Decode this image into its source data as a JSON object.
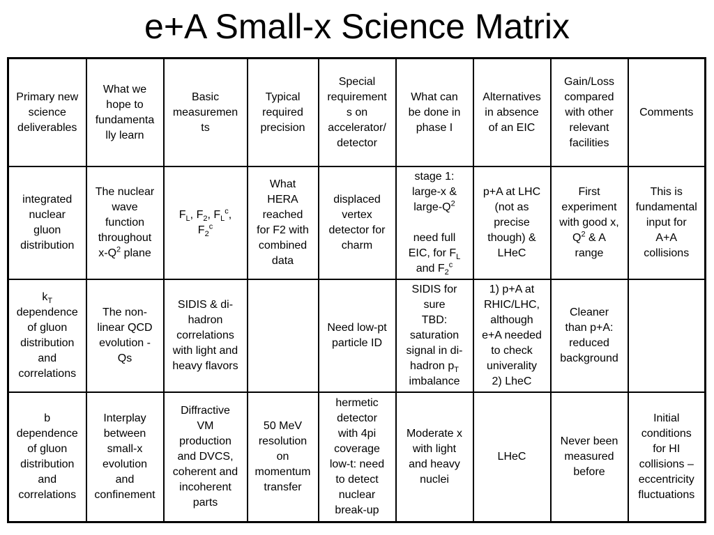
{
  "title": "e+A Small-x Science Matrix",
  "columns": [
    "Primary new\nscience\ndeliverables",
    "What we\nhope to\nfundamenta\nlly learn",
    "Basic\nmeasuremen\nts",
    "Typical\nrequired\nprecision",
    "Special\nrequirement\ns on\naccelerator/\ndetector",
    "What can\nbe done in\nphase I",
    "Alternatives\nin absence\nof an EIC",
    "Gain/Loss\ncompared\nwith other\nrelevant\nfacilities",
    "Comments"
  ],
  "row1": {
    "deliverable": "integrated\nnuclear\ngluon\ndistribution",
    "learn": "The nuclear\nwave\nfunction\nthroughout\nx-Q",
    "learn_sup": "2",
    "learn_tail": " plane",
    "meas": {
      "f": "F",
      "L": "L",
      "sep1": ", F",
      "two": "2",
      "sep2": ", F",
      "c": "c",
      "comma": ",",
      "f2c_f": "F",
      "f2c_2": "2",
      "f2c_c": "c"
    },
    "precision": "What\nHERA\nreached\nfor F2 with\ncombined\ndata",
    "special": "displaced\nvertex\ndetector for\ncharm",
    "phase1": {
      "stage": "stage 1:\nlarge-x &\nlarge-Q",
      "stage_sup": "2",
      "need": "need full\nEIC, for F",
      "need_sub": "L",
      "and": "and F",
      "and_sub": "2",
      "and_sup": "c"
    },
    "alt": "p+A at LHC\n(not as\nprecise\nthough) &\nLHeC",
    "gain": {
      "pre": "First\nexperiment\nwith good x,\nQ",
      "sup": "2",
      "post": " & A\nrange"
    },
    "comments": "This is\nfundamental\ninput for\nA+A\ncollisions"
  },
  "row2": {
    "deliverable": {
      "k": "k",
      "t": "T",
      "rest": "dependence\nof gluon\ndistribution\nand\ncorrelations"
    },
    "learn": "The non-\nlinear QCD\nevolution -\nQs",
    "meas": "SIDIS & di-\nhadron\ncorrelations\nwith light and\nheavy flavors",
    "precision": "",
    "special": "Need low-pt\nparticle ID",
    "phase1": {
      "pre": "SIDIS for\nsure\nTBD:\nsaturation\nsignal in di-\nhadron p",
      "sub": "T",
      "post": "imbalance"
    },
    "alt": "1) p+A at\nRHIC/LHC,\nalthough\ne+A needed\nto check\nuniverality\n2) LheC",
    "gain": "Cleaner\nthan p+A:\nreduced\nbackground",
    "comments": ""
  },
  "row3": {
    "deliverable": "b\ndependence\nof gluon\ndistribution\nand\ncorrelations",
    "learn": "Interplay\nbetween\nsmall-x\nevolution\nand\nconfinement",
    "meas": "Diffractive\nVM\nproduction\nand DVCS,\ncoherent and\nincoherent\nparts",
    "precision": "50 MeV\nresolution\non\nmomentum\ntransfer",
    "special": "hermetic\ndetector\nwith 4pi\ncoverage\nlow-t: need\nto detect\nnuclear\nbreak-up",
    "phase1": "Moderate x\nwith light\nand heavy\nnuclei",
    "alt": "LHeC",
    "gain": "Never been\nmeasured\nbefore",
    "comments": "Initial\nconditions\nfor HI\ncollisions –\neccentricity\nfluctuations"
  }
}
